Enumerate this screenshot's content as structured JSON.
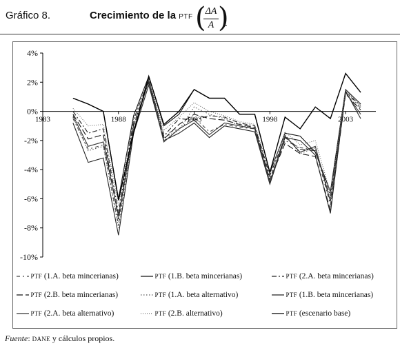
{
  "header": {
    "figure_label": "Gráfico 8.",
    "title_text": "Crecimiento de la",
    "title_abbrev": "PTF",
    "formula_numerator": "ΔA",
    "formula_denominator": "A",
    "formula_suffix": "."
  },
  "source": {
    "label": "Fuente",
    "sep": ": ",
    "abbrev": "DANE",
    "rest": " y cálculos propios."
  },
  "chart_data": {
    "type": "line",
    "x": [
      1985,
      1986,
      1987,
      1988,
      1989,
      1990,
      1991,
      1992,
      1993,
      1994,
      1995,
      1996,
      1997,
      1998,
      1999,
      2000,
      2001,
      2002,
      2003,
      2004
    ],
    "xticks": [
      "1983",
      "1988",
      "1993",
      "1998",
      "2003"
    ],
    "xlim": [
      1983,
      2005
    ],
    "ylim": [
      -10,
      4
    ],
    "yticks": [
      4,
      2,
      0,
      -2,
      -4,
      -6,
      -8,
      -10
    ],
    "yticklabels": [
      "4%",
      "2%",
      "0%",
      "-2%",
      "-4%",
      "-6%",
      "-8%",
      "-10%"
    ],
    "grid": false,
    "legend_position": "bottom",
    "series": [
      {
        "name": "PTF (1.A. beta mincerianas)",
        "style": "dash-dot-spaced",
        "color": "#444444",
        "values": [
          -0.5,
          -2.6,
          -2.3,
          -7.8,
          -1.0,
          2.1,
          -1.6,
          -1.2,
          -0.4,
          -1.4,
          -0.9,
          -1.1,
          -1.2,
          -4.6,
          -2.0,
          -2.5,
          -2.6,
          -6.4,
          1.4,
          0.2
        ]
      },
      {
        "name": "PTF (1.B. beta mincerianas)",
        "style": "solid",
        "color": "#111111",
        "values": [
          0.9,
          0.5,
          0.0,
          -6.0,
          -0.3,
          2.4,
          -1.0,
          -0.2,
          1.5,
          0.9,
          0.9,
          -0.2,
          -0.2,
          -4.2,
          -1.5,
          -1.7,
          -2.8,
          -5.5,
          1.5,
          0.5
        ]
      },
      {
        "name": "PTF (2.A. beta mincerianas)",
        "style": "dash-dot",
        "color": "#222222",
        "values": [
          0.0,
          -1.5,
          -1.2,
          -7.0,
          -0.6,
          2.2,
          -1.7,
          -0.5,
          -0.6,
          -0.3,
          -0.4,
          -0.8,
          -1.0,
          -4.4,
          -1.8,
          -2.6,
          -2.7,
          -5.8,
          1.3,
          0.4
        ]
      },
      {
        "name": "PTF (2.B. beta mincerianas)",
        "style": "long-dash",
        "color": "#111111",
        "values": [
          -0.2,
          -1.9,
          -1.6,
          -7.4,
          -0.9,
          2.0,
          -1.9,
          -0.9,
          -0.2,
          -0.5,
          -0.6,
          -0.9,
          -1.1,
          -4.7,
          -2.2,
          -2.9,
          -3.1,
          -6.8,
          1.2,
          0.1
        ]
      },
      {
        "name": "PTF (1.A. beta alternativo)",
        "style": "dotted",
        "color": "#555555",
        "values": [
          -0.4,
          -2.7,
          -2.4,
          -8.0,
          -1.2,
          2.1,
          -1.8,
          -1.3,
          0.3,
          -0.2,
          -0.5,
          -1.0,
          -1.1,
          -4.8,
          -1.6,
          -2.9,
          -2.5,
          -6.0,
          1.5,
          0.3
        ]
      },
      {
        "name": "PTF (1.B. beta mincerianas)",
        "style": "solid",
        "color": "#222222",
        "values": [
          -0.8,
          -3.5,
          -3.2,
          -8.5,
          -1.5,
          1.8,
          -2.0,
          -1.5,
          -0.8,
          -1.8,
          -1.0,
          -1.2,
          -1.4,
          -5.0,
          -1.8,
          -2.0,
          -3.0,
          -7.0,
          1.4,
          -0.5
        ]
      },
      {
        "name": "PTF (2.A. beta alternativo)",
        "style": "solid",
        "color": "#333333",
        "values": [
          -0.3,
          -2.4,
          -2.1,
          -7.2,
          -1.3,
          2.1,
          -2.1,
          -1.2,
          -0.6,
          -1.6,
          -0.8,
          -1.0,
          -1.2,
          -4.9,
          -1.7,
          -2.8,
          -2.4,
          -6.2,
          1.3,
          -0.2
        ]
      },
      {
        "name": "PTF (2.B. alternativo)",
        "style": "dotted-fine",
        "color": "#666666",
        "values": [
          0.2,
          -1.0,
          -0.9,
          -6.5,
          -0.5,
          2.2,
          -1.3,
          -0.4,
          0.6,
          0.0,
          -0.3,
          -0.7,
          -0.9,
          -4.3,
          -1.4,
          -2.3,
          -2.0,
          -5.6,
          1.4,
          0.4
        ]
      },
      {
        "name": "PTF (escenario base)",
        "style": "solid",
        "color": "#000000",
        "values": [
          0.9,
          0.5,
          0.0,
          -6.1,
          -1.5,
          2.4,
          -0.9,
          0.0,
          1.5,
          0.9,
          0.9,
          -0.2,
          -0.2,
          -4.2,
          -0.4,
          -1.2,
          0.3,
          -0.5,
          2.6,
          1.3
        ]
      }
    ]
  }
}
